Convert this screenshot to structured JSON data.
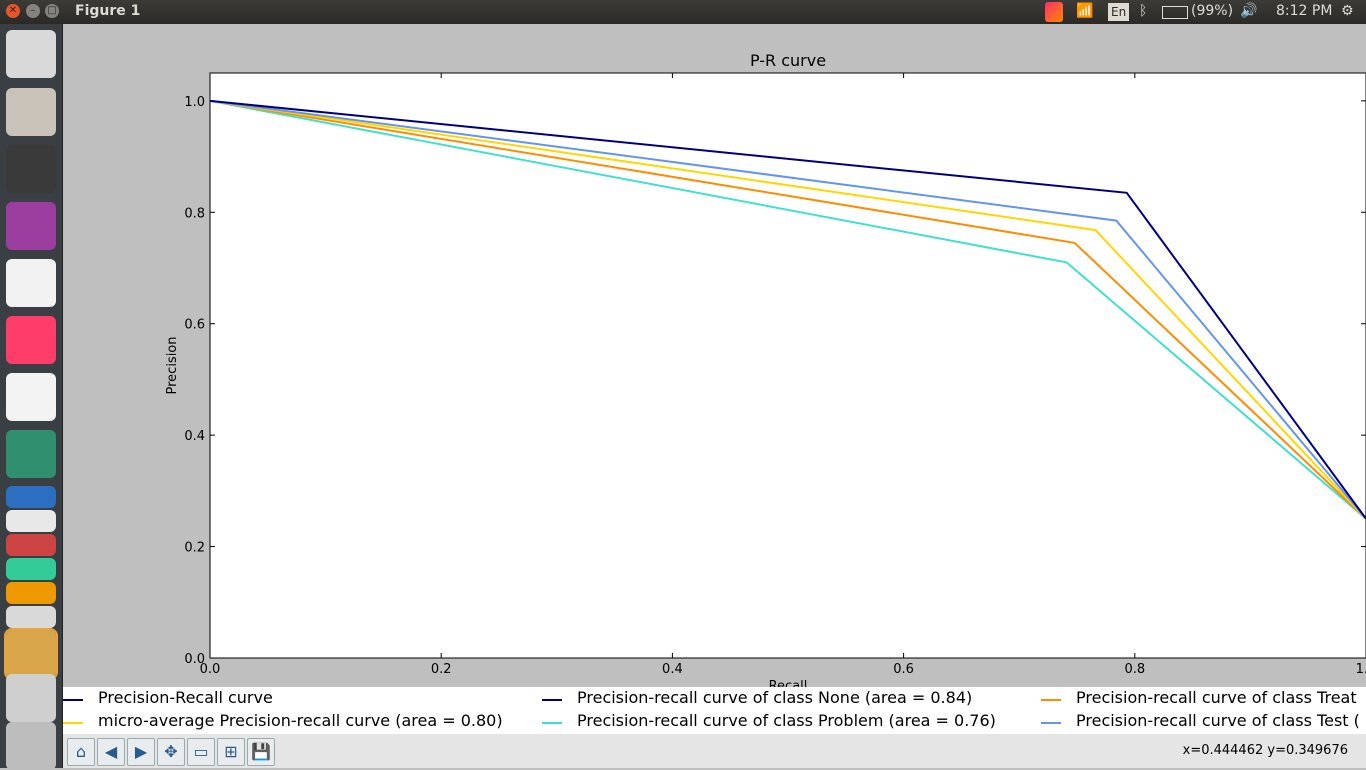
{
  "window": {
    "title": "Figure 1"
  },
  "tray": {
    "keyboard": "En",
    "battery": "(99%)",
    "time": "8:12 PM"
  },
  "launcher": {
    "apps": [
      "ubuntu-dash",
      "files",
      "terminal",
      "app-purple",
      "chrome",
      "jetbrains-toolbox",
      "vlc",
      "atom",
      "firefox",
      "libreoffice-writer",
      "libreoffice-impress",
      "libreoffice-calc",
      "amazon",
      "system-settings",
      "oscilloscope-app",
      "workspace-switcher",
      "trash"
    ]
  },
  "chart_data": {
    "type": "line",
    "title": "P-R curve",
    "xlabel": "Recall",
    "ylabel": "Precision",
    "xlim": [
      0.0,
      1.0
    ],
    "ylim": [
      0.0,
      1.05
    ],
    "xticks": [
      0.0,
      0.2,
      0.4,
      0.6,
      0.8,
      1.0
    ],
    "xtick_labels": [
      "0.0",
      "0.2",
      "0.4",
      "0.6",
      "0.8",
      "1.0"
    ],
    "yticks": [
      0.0,
      0.2,
      0.4,
      0.6,
      0.8,
      1.0
    ],
    "ytick_labels": [
      "0.0",
      "0.2",
      "0.4",
      "0.6",
      "0.8",
      "1.0"
    ],
    "grid": false,
    "legend_position": "below plot",
    "series": [
      {
        "name": "Precision-Recall curve",
        "color": "#000080",
        "points": []
      },
      {
        "name": "micro-average Precision-recall curve (area = 0.80)",
        "color": "#ffd700",
        "points": [
          [
            0.0,
            1.0
          ],
          [
            0.766,
            0.768
          ],
          [
            1.0,
            0.25
          ]
        ]
      },
      {
        "name": "Precision-recall curve of class None (area = 0.84)",
        "color": "#000080",
        "points": [
          [
            0.0,
            1.0
          ],
          [
            0.793,
            0.835
          ],
          [
            1.0,
            0.25
          ]
        ]
      },
      {
        "name": "Precision-recall curve of class Problem (area = 0.76)",
        "color": "#40e0d0",
        "points": [
          [
            0.0,
            1.0
          ],
          [
            0.741,
            0.71
          ],
          [
            1.0,
            0.25
          ]
        ]
      },
      {
        "name": "Precision-recall curve of class Treat",
        "color": "#ff8c00",
        "points": [
          [
            0.0,
            1.0
          ],
          [
            0.748,
            0.745
          ],
          [
            1.0,
            0.25
          ]
        ]
      },
      {
        "name": "Precision-recall curve of class Test (",
        "color": "#6495ed",
        "points": [
          [
            0.0,
            1.0
          ],
          [
            0.784,
            0.785
          ],
          [
            1.0,
            0.25
          ]
        ]
      }
    ]
  },
  "toolbar": {
    "buttons": [
      {
        "name": "home-icon",
        "glyph": "⌂"
      },
      {
        "name": "back-icon",
        "glyph": "◀"
      },
      {
        "name": "forward-icon",
        "glyph": "▶"
      },
      {
        "name": "pan-icon",
        "glyph": "✥"
      },
      {
        "name": "zoom-rect-icon",
        "glyph": "▭"
      },
      {
        "name": "subplots-icon",
        "glyph": "⊞"
      },
      {
        "name": "save-icon",
        "glyph": "💾"
      }
    ],
    "coords": "x=0.444462     y=0.349676"
  }
}
